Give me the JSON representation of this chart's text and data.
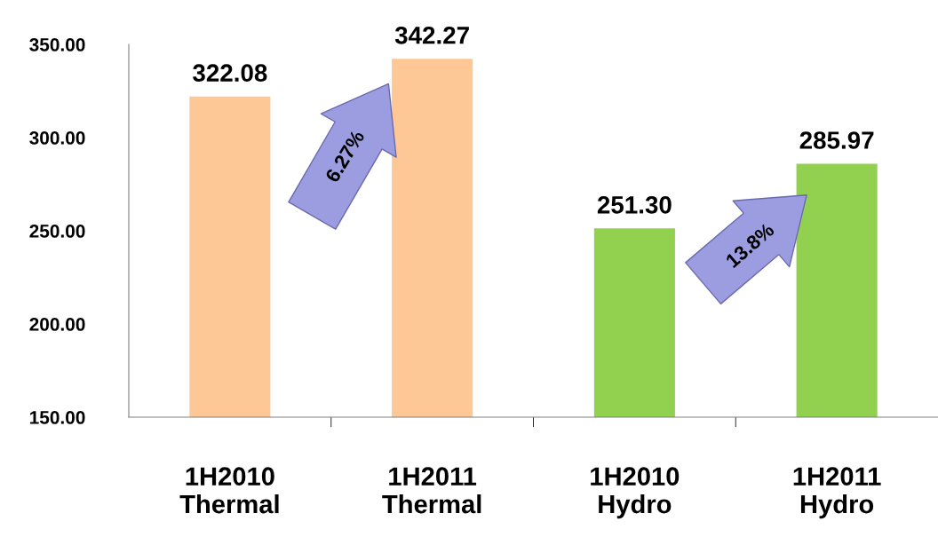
{
  "chart_data": {
    "type": "bar",
    "categories": [
      "1H2010\nThermal",
      "1H2011\nThermal",
      "1H2010\nHydro",
      "1H2011\nHydro"
    ],
    "values": [
      322.08,
      342.27,
      251.3,
      285.97
    ],
    "value_labels": [
      "322.08",
      "342.27",
      "251.30",
      "285.97"
    ],
    "colors": [
      "#fdc896",
      "#fdc896",
      "#92d050",
      "#92d050"
    ],
    "ylim": [
      150,
      350
    ],
    "yticks": [
      {
        "value": 150,
        "label": "150.00"
      },
      {
        "value": 200,
        "label": "200.00"
      },
      {
        "value": 250,
        "label": "250.00"
      },
      {
        "value": 300,
        "label": "300.00"
      },
      {
        "value": 350,
        "label": "350.00"
      }
    ],
    "annotations": [
      "6.27%",
      "13.8%"
    ],
    "grid": false,
    "legend": false
  }
}
